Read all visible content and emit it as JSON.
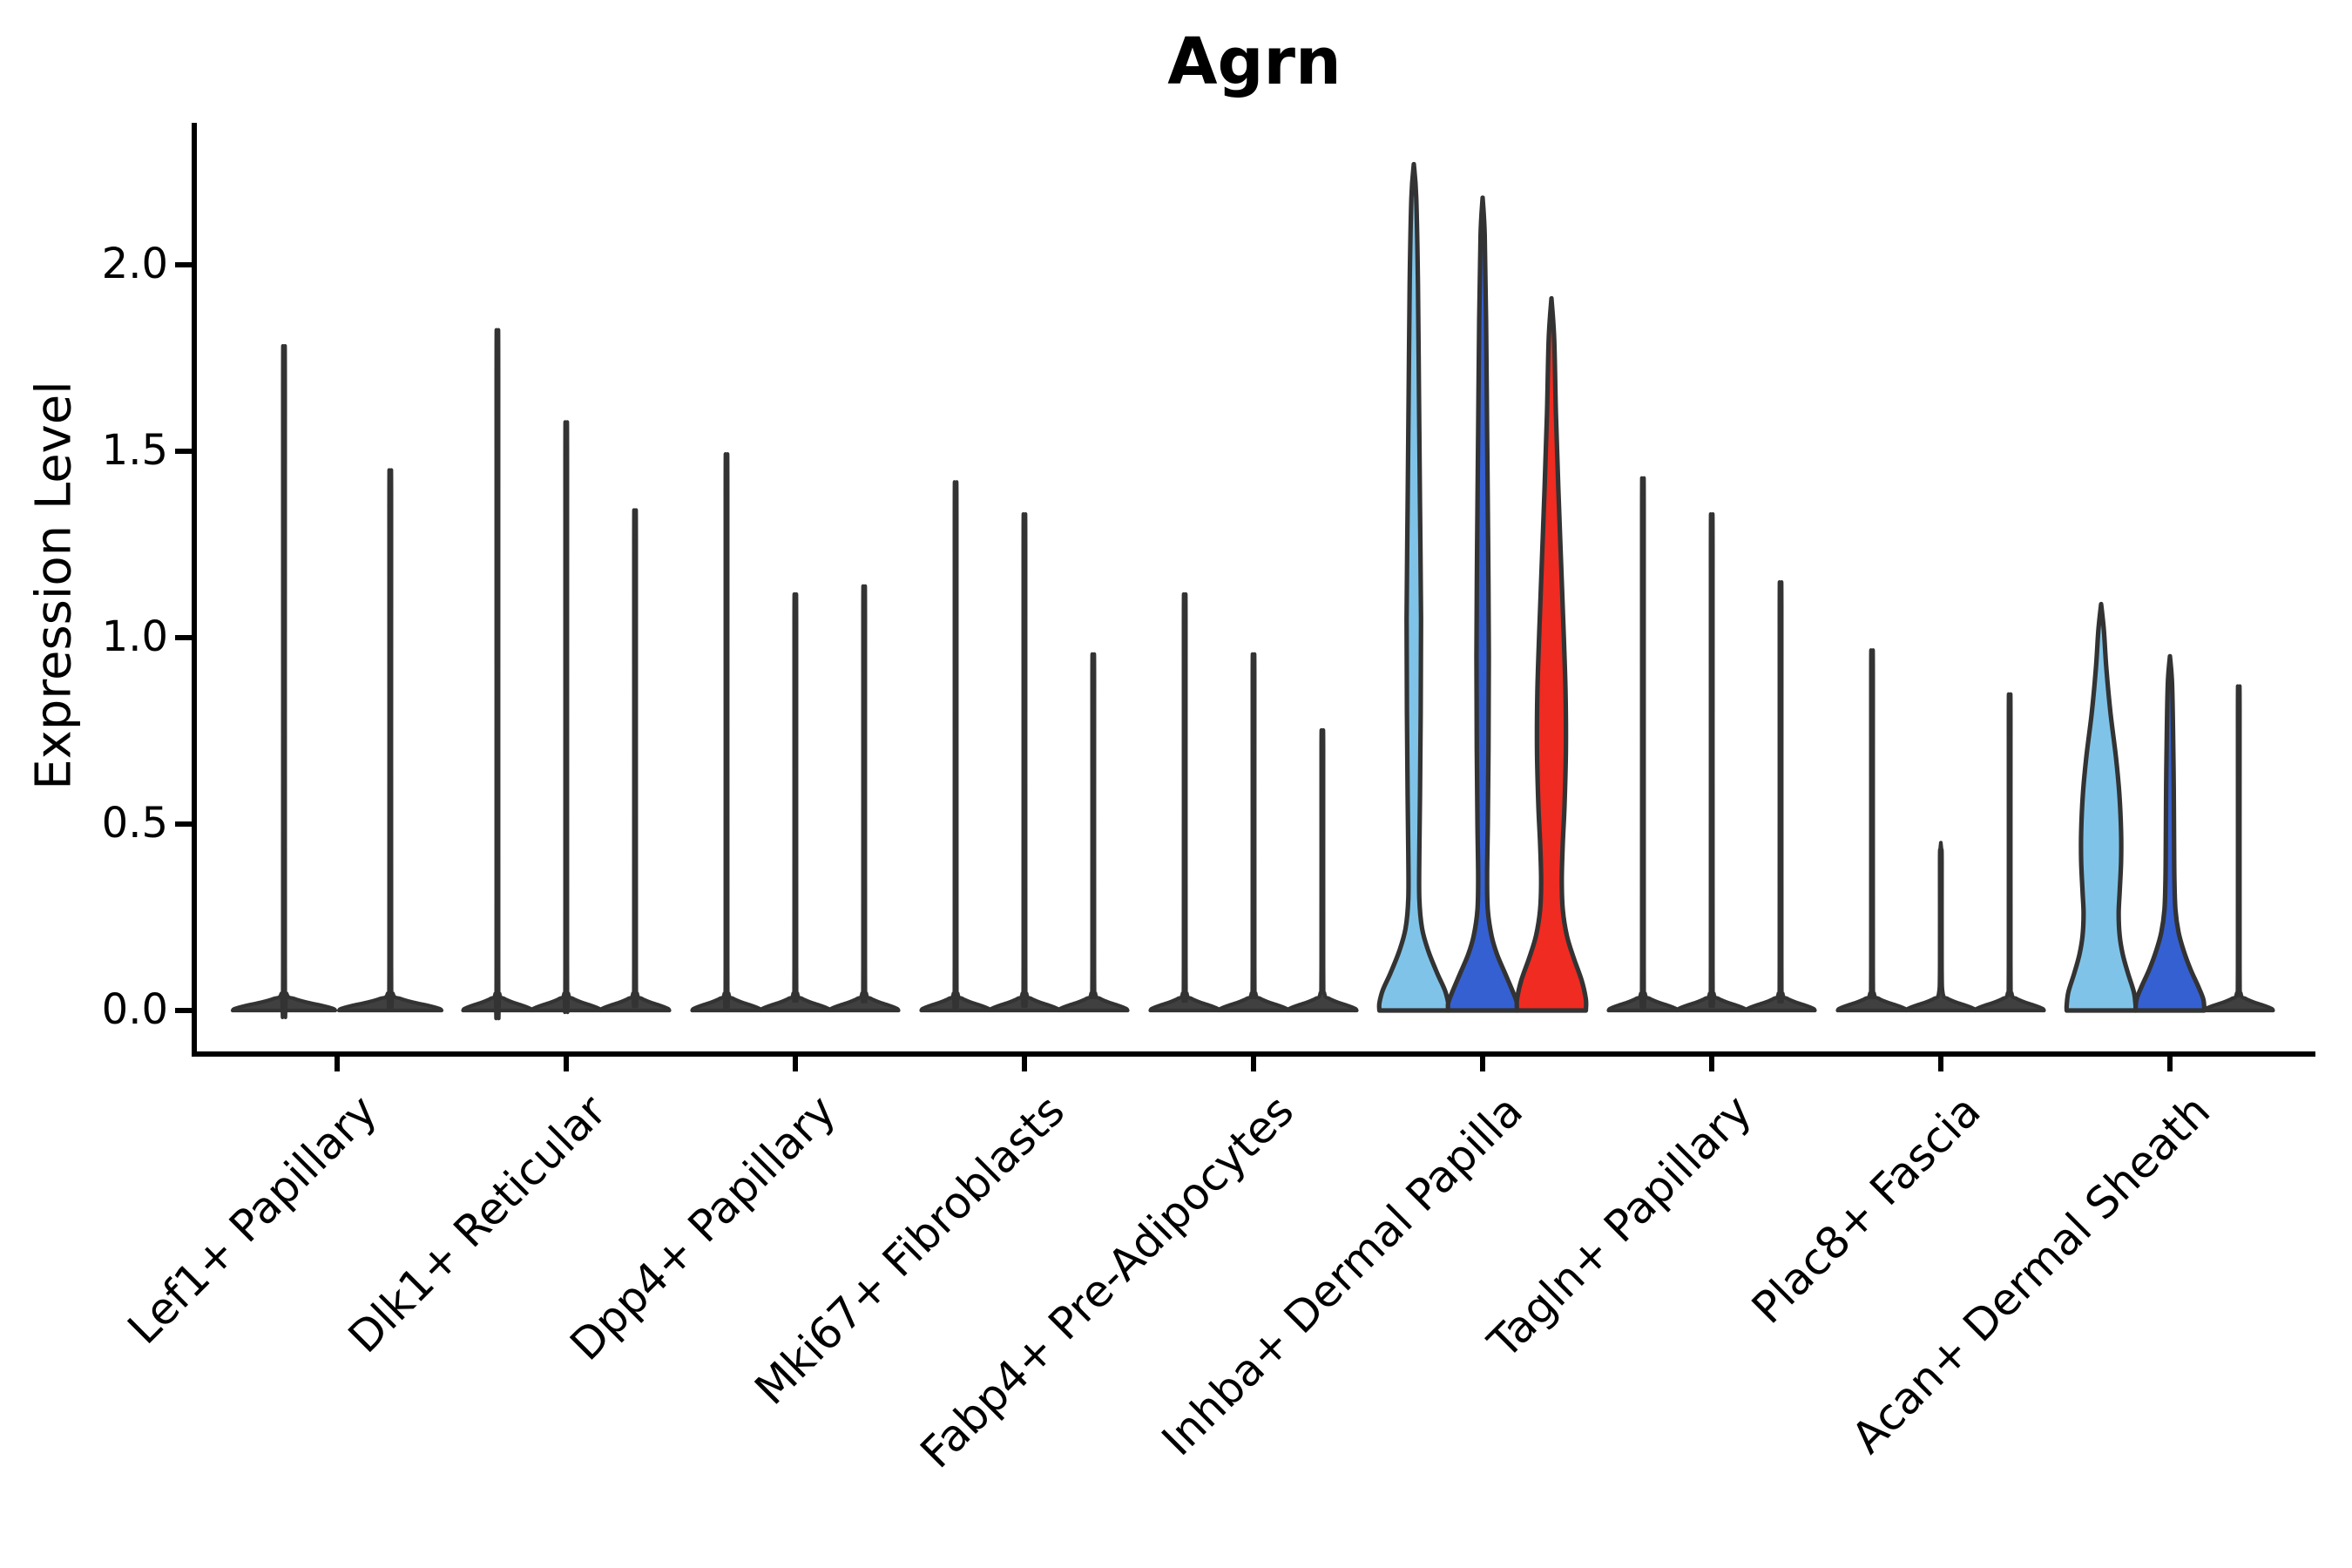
{
  "chart_data": {
    "type": "violin",
    "title": "Agrn",
    "ylabel": "Expression Level",
    "xlabel": "",
    "yticks": [
      "0.0",
      "0.5",
      "1.0",
      "1.5",
      "2.0"
    ],
    "ytick_values": [
      0.0,
      0.5,
      1.0,
      1.5,
      2.0
    ],
    "ylim": [
      -0.12,
      2.39
    ],
    "grid": false,
    "legend": "none",
    "colors": {
      "skyblue": "#7FC4E8",
      "royalblue": "#3560D2",
      "red": "#EF2B22",
      "dark": "#404040",
      "edge": "#333333",
      "axis": "#000000"
    },
    "categories": [
      "Lef1+ Papillary",
      "Dlk1+ Reticular",
      "Dpp4+ Papillary",
      "Mki67+ Fibroblasts",
      "Fabp4+ Pre-Adipocytes",
      "Inhba+ Dermal Papilla",
      "Tagln+ Papillary",
      "Plac8+ Fascia",
      "Acan+ Dermal Sheath"
    ],
    "groups": [
      {
        "category": "Lef1+ Papillary",
        "violins": [
          {
            "peak": 1.71,
            "color": "dark",
            "shape": "spike"
          },
          {
            "peak": 1.4,
            "color": "dark",
            "shape": "spike"
          }
        ]
      },
      {
        "category": "Dlk1+ Reticular",
        "violins": [
          {
            "peak": 1.75,
            "color": "dark",
            "shape": "spike"
          },
          {
            "peak": 1.52,
            "color": "dark",
            "shape": "spike"
          },
          {
            "peak": 1.3,
            "color": "dark",
            "shape": "spike"
          }
        ]
      },
      {
        "category": "Dpp4+ Papillary",
        "violins": [
          {
            "peak": 1.44,
            "color": "dark",
            "shape": "spike"
          },
          {
            "peak": 1.09,
            "color": "dark",
            "shape": "spike"
          },
          {
            "peak": 1.11,
            "color": "dark",
            "shape": "spike"
          }
        ]
      },
      {
        "category": "Mki67+ Fibroblasts",
        "violins": [
          {
            "peak": 1.37,
            "color": "dark",
            "shape": "spike"
          },
          {
            "peak": 1.29,
            "color": "dark",
            "shape": "spike"
          },
          {
            "peak": 0.94,
            "color": "dark",
            "shape": "spike"
          }
        ]
      },
      {
        "category": "Fabp4+ Pre-Adipocytes",
        "violins": [
          {
            "peak": 1.09,
            "color": "dark",
            "shape": "spike"
          },
          {
            "peak": 0.94,
            "color": "dark",
            "shape": "spike"
          },
          {
            "peak": 0.75,
            "color": "dark",
            "shape": "spike"
          }
        ]
      },
      {
        "category": "Inhba+ Dermal Papilla",
        "violins": [
          {
            "peak": 2.27,
            "color": "skyblue",
            "shape": "kde",
            "profile": [
              [
                2.27,
                0
              ],
              [
                2.18,
                0.07
              ],
              [
                1.95,
                0.12
              ],
              [
                1.65,
                0.15
              ],
              [
                1.35,
                0.18
              ],
              [
                1.05,
                0.21
              ],
              [
                0.8,
                0.2
              ],
              [
                0.58,
                0.18
              ],
              [
                0.42,
                0.16
              ],
              [
                0.3,
                0.16
              ],
              [
                0.22,
                0.24
              ],
              [
                0.16,
                0.42
              ],
              [
                0.1,
                0.68
              ],
              [
                0.055,
                0.9
              ],
              [
                0.02,
                1
              ],
              [
                0,
                1
              ]
            ]
          },
          {
            "peak": 2.18,
            "color": "royalblue",
            "shape": "kde",
            "profile": [
              [
                2.18,
                0
              ],
              [
                2.08,
                0.06
              ],
              [
                1.85,
                0.1
              ],
              [
                1.55,
                0.13
              ],
              [
                1.25,
                0.16
              ],
              [
                0.95,
                0.18
              ],
              [
                0.7,
                0.17
              ],
              [
                0.5,
                0.15
              ],
              [
                0.36,
                0.13
              ],
              [
                0.27,
                0.15
              ],
              [
                0.2,
                0.26
              ],
              [
                0.15,
                0.42
              ],
              [
                0.1,
                0.65
              ],
              [
                0.05,
                0.88
              ],
              [
                0.02,
                1
              ],
              [
                0,
                1
              ]
            ]
          },
          {
            "peak": 1.91,
            "color": "red",
            "shape": "kde",
            "profile": [
              [
                1.91,
                0
              ],
              [
                1.8,
                0.08
              ],
              [
                1.6,
                0.13
              ],
              [
                1.4,
                0.2
              ],
              [
                1.2,
                0.28
              ],
              [
                1.0,
                0.36
              ],
              [
                0.85,
                0.41
              ],
              [
                0.7,
                0.42
              ],
              [
                0.55,
                0.38
              ],
              [
                0.45,
                0.33
              ],
              [
                0.35,
                0.3
              ],
              [
                0.27,
                0.33
              ],
              [
                0.2,
                0.45
              ],
              [
                0.14,
                0.65
              ],
              [
                0.08,
                0.88
              ],
              [
                0.03,
                1
              ],
              [
                0,
                1
              ]
            ]
          }
        ]
      },
      {
        "category": "Tagln+ Papillary",
        "violins": [
          {
            "peak": 1.38,
            "color": "dark",
            "shape": "spike"
          },
          {
            "peak": 1.29,
            "color": "dark",
            "shape": "spike"
          },
          {
            "peak": 1.12,
            "color": "dark",
            "shape": "spike"
          }
        ]
      },
      {
        "category": "Plac8+ Fascia",
        "violins": [
          {
            "peak": 0.95,
            "color": "dark",
            "shape": "spike"
          },
          {
            "peak": 0.45,
            "color": "dark",
            "shape": "spike"
          },
          {
            "peak": 0.84,
            "color": "dark",
            "shape": "spike"
          }
        ]
      },
      {
        "category": "Acan+ Dermal Sheath",
        "violins": [
          {
            "peak": 1.09,
            "color": "skyblue",
            "shape": "kde",
            "profile": [
              [
                1.09,
                0
              ],
              [
                1.02,
                0.08
              ],
              [
                0.92,
                0.15
              ],
              [
                0.8,
                0.27
              ],
              [
                0.68,
                0.43
              ],
              [
                0.58,
                0.53
              ],
              [
                0.48,
                0.58
              ],
              [
                0.4,
                0.58
              ],
              [
                0.32,
                0.54
              ],
              [
                0.26,
                0.51
              ],
              [
                0.2,
                0.54
              ],
              [
                0.15,
                0.63
              ],
              [
                0.1,
                0.78
              ],
              [
                0.05,
                0.95
              ],
              [
                0.015,
                1
              ],
              [
                0,
                1
              ]
            ]
          },
          {
            "peak": 0.95,
            "color": "royalblue",
            "shape": "kde",
            "profile": [
              [
                0.95,
                0
              ],
              [
                0.88,
                0.06
              ],
              [
                0.75,
                0.09
              ],
              [
                0.6,
                0.11
              ],
              [
                0.45,
                0.12
              ],
              [
                0.35,
                0.13
              ],
              [
                0.27,
                0.16
              ],
              [
                0.21,
                0.25
              ],
              [
                0.16,
                0.4
              ],
              [
                0.11,
                0.6
              ],
              [
                0.065,
                0.82
              ],
              [
                0.03,
                0.97
              ],
              [
                0,
                1
              ]
            ]
          },
          {
            "peak": 0.86,
            "color": "dark",
            "shape": "spike"
          }
        ]
      }
    ]
  }
}
